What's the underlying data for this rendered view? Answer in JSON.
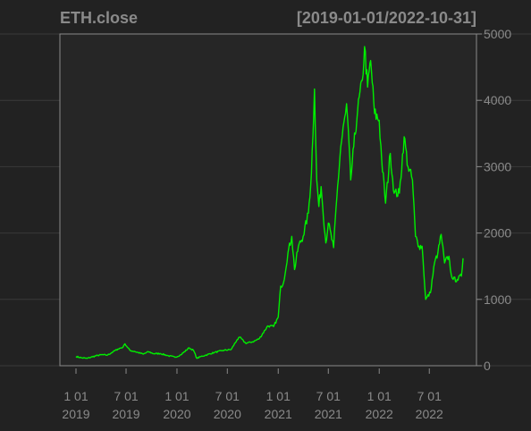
{
  "chart_data": {
    "type": "line",
    "title": "ETH.close",
    "subtitle": "[2019-01-01/2022-10-31]",
    "xlabel": "",
    "ylabel": "",
    "ylim": [
      0,
      5000
    ],
    "xlim": [
      "2019-01-01",
      "2022-10-31"
    ],
    "grid": true,
    "colors": {
      "background": "#222222",
      "line": "#00ee00",
      "axis": "#8a8a8a",
      "grid": "#3a3a3a"
    },
    "y_ticks": [
      {
        "value": 0,
        "label": "0"
      },
      {
        "value": 1000,
        "label": "1000"
      },
      {
        "value": 2000,
        "label": "2000"
      },
      {
        "value": 3000,
        "label": "3000"
      },
      {
        "value": 4000,
        "label": "4000"
      },
      {
        "value": 5000,
        "label": "5000"
      }
    ],
    "x_ticks": [
      {
        "date": "2019-01-01",
        "label1": "1 01",
        "label2": "2019"
      },
      {
        "date": "2019-07-01",
        "label1": "7 01",
        "label2": "2019"
      },
      {
        "date": "2020-01-01",
        "label1": "1 01",
        "label2": "2020"
      },
      {
        "date": "2020-07-01",
        "label1": "7 01",
        "label2": "2020"
      },
      {
        "date": "2021-01-01",
        "label1": "1 01",
        "label2": "2021"
      },
      {
        "date": "2021-07-01",
        "label1": "7 01",
        "label2": "2021"
      },
      {
        "date": "2022-01-01",
        "label1": "1 01",
        "label2": "2022"
      },
      {
        "date": "2022-07-01",
        "label1": "7 01",
        "label2": "2022"
      }
    ],
    "series": [
      {
        "points": [
          [
            "2019-01-01",
            140
          ],
          [
            "2019-01-20",
            120
          ],
          [
            "2019-02-10",
            110
          ],
          [
            "2019-03-01",
            135
          ],
          [
            "2019-04-01",
            165
          ],
          [
            "2019-04-25",
            160
          ],
          [
            "2019-05-15",
            210
          ],
          [
            "2019-06-01",
            250
          ],
          [
            "2019-06-20",
            280
          ],
          [
            "2019-06-27",
            330
          ],
          [
            "2019-07-15",
            230
          ],
          [
            "2019-08-01",
            215
          ],
          [
            "2019-09-01",
            175
          ],
          [
            "2019-09-20",
            210
          ],
          [
            "2019-10-10",
            180
          ],
          [
            "2019-11-01",
            185
          ],
          [
            "2019-12-01",
            150
          ],
          [
            "2019-12-25",
            128
          ],
          [
            "2020-01-15",
            165
          ],
          [
            "2020-02-14",
            270
          ],
          [
            "2020-03-01",
            230
          ],
          [
            "2020-03-13",
            110
          ],
          [
            "2020-03-25",
            135
          ],
          [
            "2020-04-15",
            160
          ],
          [
            "2020-05-15",
            200
          ],
          [
            "2020-06-15",
            230
          ],
          [
            "2020-07-15",
            245
          ],
          [
            "2020-08-05",
            390
          ],
          [
            "2020-08-15",
            430
          ],
          [
            "2020-09-05",
            340
          ],
          [
            "2020-10-01",
            360
          ],
          [
            "2020-10-25",
            410
          ],
          [
            "2020-11-24",
            600
          ],
          [
            "2020-12-15",
            590
          ],
          [
            "2021-01-01",
            730
          ],
          [
            "2021-01-10",
            1200
          ],
          [
            "2021-01-20",
            1250
          ],
          [
            "2021-02-05",
            1700
          ],
          [
            "2021-02-19",
            1950
          ],
          [
            "2021-03-01",
            1450
          ],
          [
            "2021-03-15",
            1800
          ],
          [
            "2021-04-01",
            1950
          ],
          [
            "2021-04-20",
            2300
          ],
          [
            "2021-05-01",
            2900
          ],
          [
            "2021-05-12",
            4170
          ],
          [
            "2021-05-20",
            2800
          ],
          [
            "2021-05-28",
            2400
          ],
          [
            "2021-06-05",
            2700
          ],
          [
            "2021-06-22",
            1850
          ],
          [
            "2021-07-01",
            2150
          ],
          [
            "2021-07-20",
            1780
          ],
          [
            "2021-08-01",
            2550
          ],
          [
            "2021-08-15",
            3300
          ],
          [
            "2021-09-01",
            3800
          ],
          [
            "2021-09-05",
            3950
          ],
          [
            "2021-09-20",
            2800
          ],
          [
            "2021-10-01",
            3300
          ],
          [
            "2021-10-15",
            3850
          ],
          [
            "2021-11-01",
            4300
          ],
          [
            "2021-11-09",
            4810
          ],
          [
            "2021-11-20",
            4200
          ],
          [
            "2021-12-01",
            4600
          ],
          [
            "2021-12-15",
            3800
          ],
          [
            "2022-01-01",
            3700
          ],
          [
            "2022-01-10",
            3100
          ],
          [
            "2022-01-24",
            2450
          ],
          [
            "2022-02-10",
            3200
          ],
          [
            "2022-02-24",
            2600
          ],
          [
            "2022-03-15",
            2600
          ],
          [
            "2022-04-01",
            3450
          ],
          [
            "2022-04-15",
            3000
          ],
          [
            "2022-05-01",
            2800
          ],
          [
            "2022-05-12",
            1950
          ],
          [
            "2022-05-25",
            1800
          ],
          [
            "2022-06-05",
            1800
          ],
          [
            "2022-06-18",
            1000
          ],
          [
            "2022-07-05",
            1100
          ],
          [
            "2022-07-20",
            1550
          ],
          [
            "2022-08-01",
            1700
          ],
          [
            "2022-08-13",
            1980
          ],
          [
            "2022-08-25",
            1550
          ],
          [
            "2022-09-10",
            1650
          ],
          [
            "2022-09-15",
            1450
          ],
          [
            "2022-09-25",
            1300
          ],
          [
            "2022-10-10",
            1300
          ],
          [
            "2022-10-25",
            1350
          ],
          [
            "2022-10-31",
            1620
          ]
        ]
      }
    ]
  }
}
